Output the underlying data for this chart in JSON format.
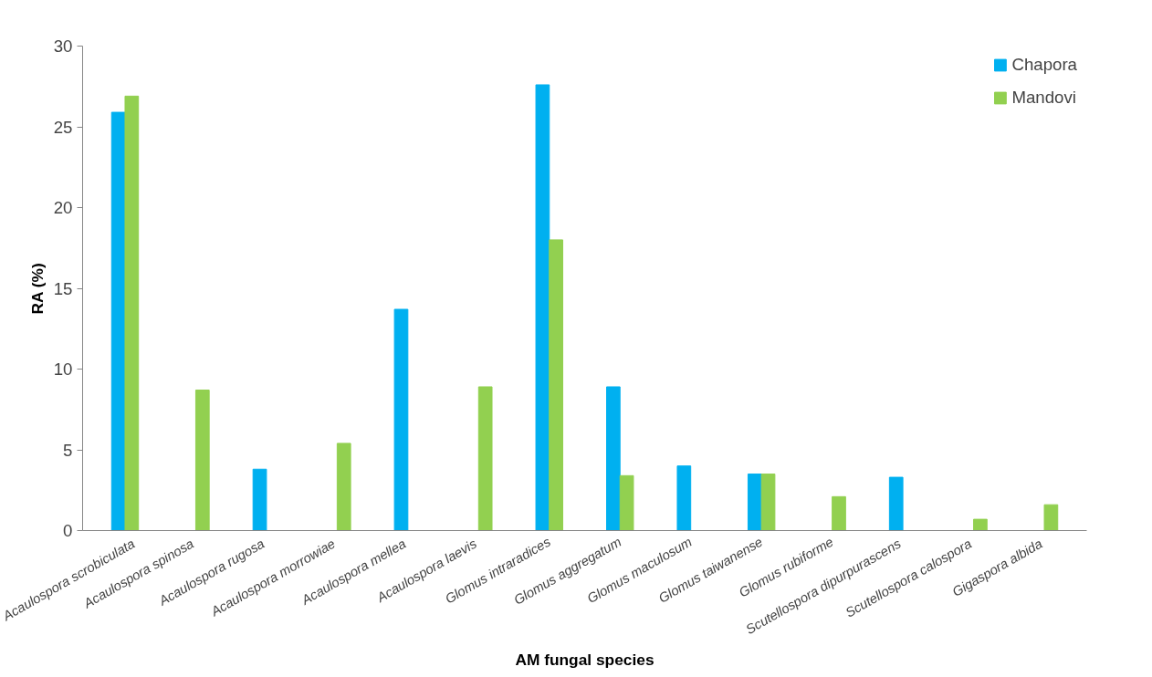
{
  "chart_data": {
    "type": "bar",
    "xlabel": "AM fungal species",
    "ylabel": "RA (%)",
    "categories": [
      "Acaulospora  scrobiculata",
      "Acaulospora  spinosa",
      "Acaulospora  rugosa",
      "Acaulospora  morrowiae",
      "Acaulospora  mellea",
      "Acaulospora  laevis",
      "Glomus intraradices",
      "Glomus aggregatum",
      "Glomus maculosum",
      "Glomus taiwanense",
      "Glomus rubiforme",
      "Scutellospora  dipurpurascens",
      "Scutellospora  calospora",
      "Gigaspora  albida"
    ],
    "series": [
      {
        "name": "Chapora",
        "color": "#00b0f0",
        "values": [
          25.9,
          0,
          3.8,
          0,
          13.7,
          0,
          27.6,
          8.9,
          4.0,
          3.5,
          0,
          3.3,
          0,
          0
        ]
      },
      {
        "name": "Mandovi",
        "color": "#92d050",
        "values": [
          26.9,
          8.7,
          0,
          5.4,
          0,
          8.9,
          18.0,
          3.4,
          0,
          3.5,
          2.1,
          0,
          0.7,
          1.6
        ]
      }
    ],
    "ylim": [
      0,
      30
    ],
    "yticks": [
      0,
      5,
      10,
      15,
      20,
      25,
      30
    ],
    "grid": false,
    "legend": "top right"
  }
}
